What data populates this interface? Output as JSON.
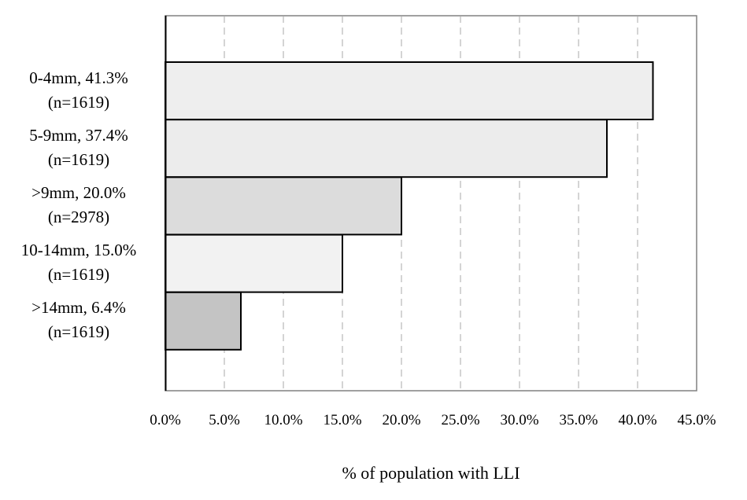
{
  "chart_data": {
    "type": "bar",
    "orientation": "horizontal",
    "categories": [
      {
        "name": "0-4mm, 41.3%",
        "n": "(n=1619)"
      },
      {
        "name": "5-9mm, 37.4%",
        "n": "(n=1619)"
      },
      {
        "name": ">9mm, 20.0%",
        "n": "(n=2978)"
      },
      {
        "name": "10-14mm, 15.0%",
        "n": "(n=1619)"
      },
      {
        "name": ">14mm, 6.4%",
        "n": "(n=1619)"
      }
    ],
    "values": [
      41.3,
      37.4,
      20.0,
      15.0,
      6.4
    ],
    "xlabel": "% of population with LLI",
    "ylabel": "",
    "title": "",
    "xlim": [
      0,
      45
    ],
    "xticks": [
      "0.0%",
      "5.0%",
      "10.0%",
      "15.0%",
      "20.0%",
      "25.0%",
      "30.0%",
      "35.0%",
      "40.0%",
      "45.0%"
    ],
    "grid": "vertical-dashed",
    "colors": [
      "#eeeeee",
      "#ececec",
      "#dcdcdc",
      "#f2f2f2",
      "#c4c4c4"
    ]
  }
}
